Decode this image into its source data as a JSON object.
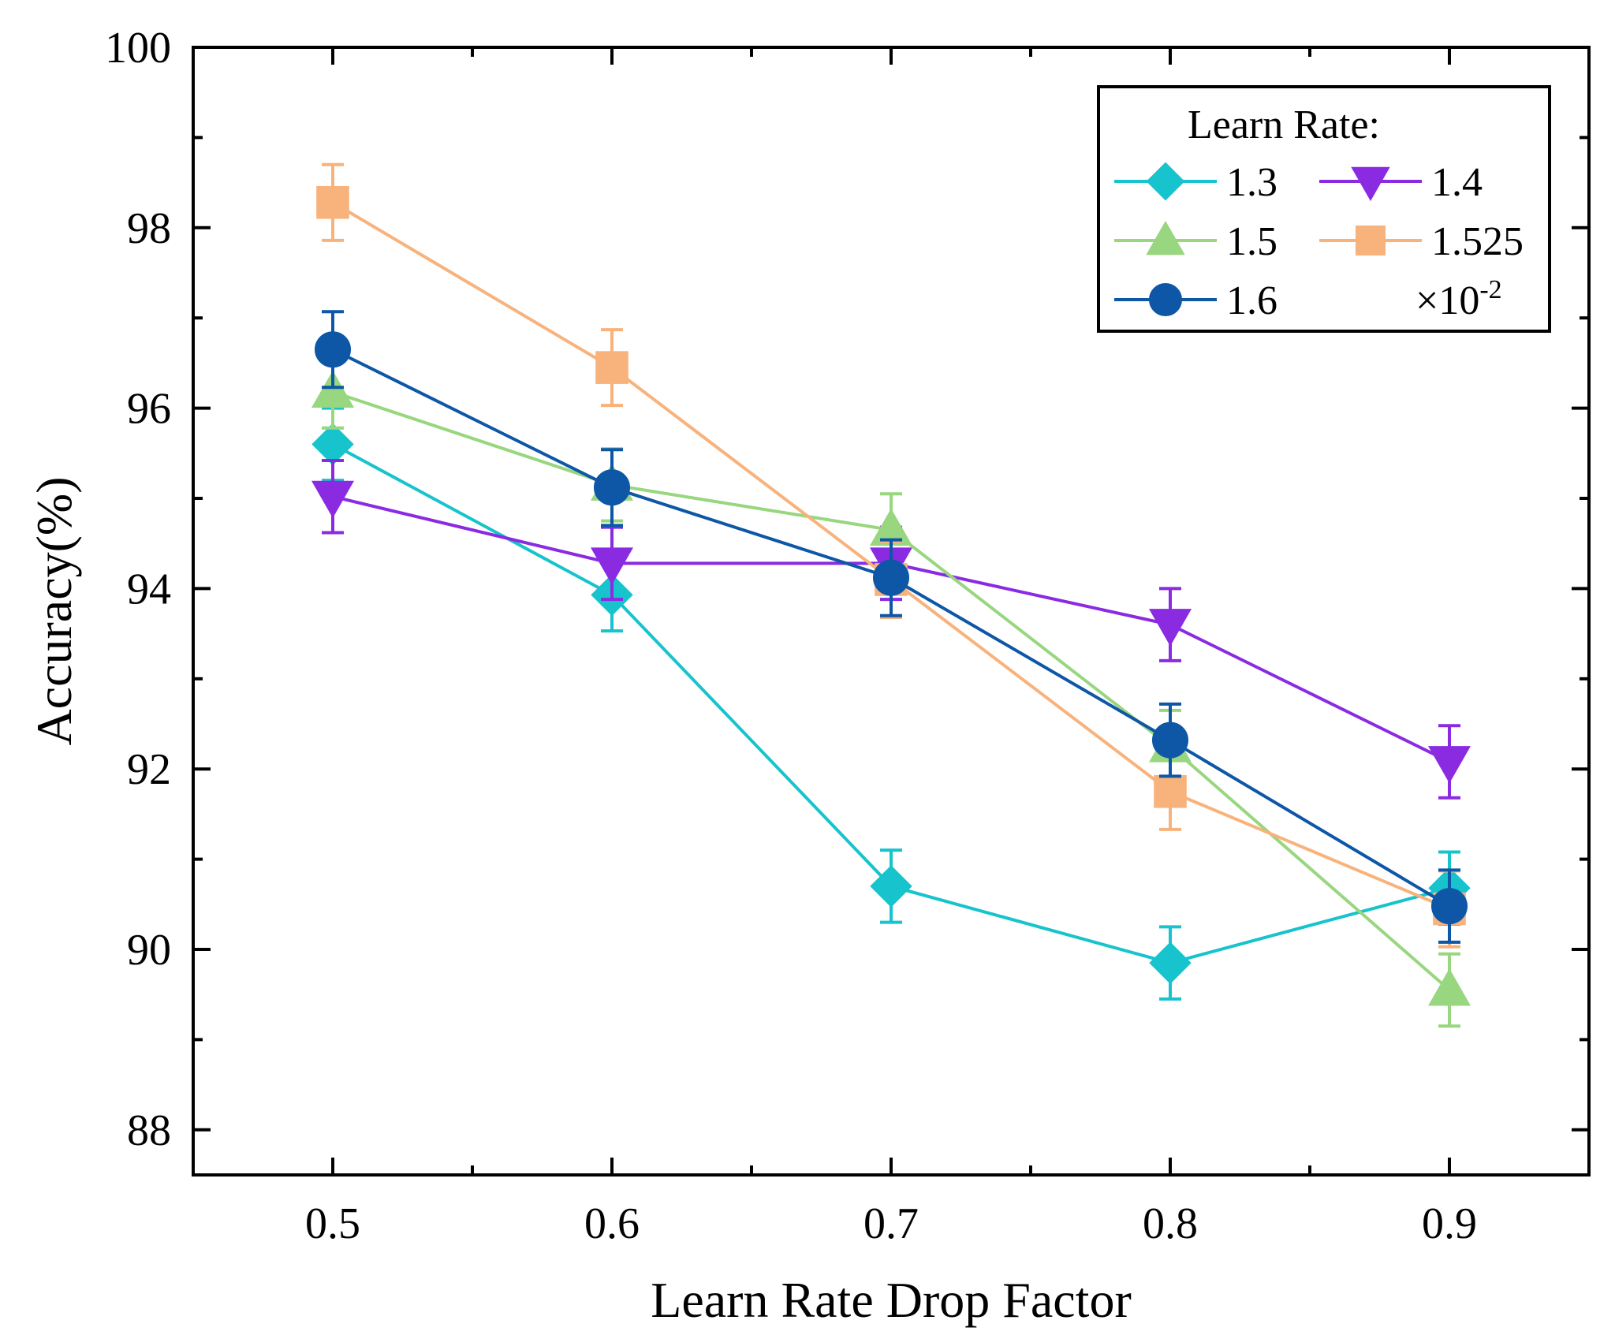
{
  "chart_data": {
    "type": "line",
    "title": "",
    "xlabel": "Learn Rate Drop Factor",
    "ylabel": "Accuracy(%)",
    "x": [
      0.5,
      0.6,
      0.7,
      0.8,
      0.9
    ],
    "x_tick_labels": [
      "0.5",
      "0.6",
      "0.7",
      "0.8",
      "0.9"
    ],
    "xlim": [
      0.45,
      0.95
    ],
    "ylim": [
      87.5,
      100
    ],
    "y_ticks": [
      88,
      90,
      92,
      94,
      96,
      98,
      100
    ],
    "y_tick_labels": [
      "88",
      "90",
      "92",
      "94",
      "96",
      "98",
      "100"
    ],
    "grid": false,
    "legend": {
      "title": "Learn Rate:",
      "position": "top-right",
      "multiplier_prefix": "×10",
      "multiplier_exp": "-2"
    },
    "series": [
      {
        "name": "1.3",
        "color": "#17c3cc",
        "marker": "diamond",
        "values": [
          95.6,
          93.93,
          90.7,
          89.85,
          90.68
        ],
        "errors": [
          0.4,
          0.4,
          0.4,
          0.4,
          0.4
        ]
      },
      {
        "name": "1.4",
        "color": "#8a2be2",
        "marker": "triangle-down",
        "values": [
          95.02,
          94.28,
          94.28,
          93.6,
          92.08
        ],
        "errors": [
          0.4,
          0.4,
          0.4,
          0.4,
          0.4
        ]
      },
      {
        "name": "1.5",
        "color": "#98d67f",
        "marker": "triangle-up",
        "values": [
          96.18,
          95.15,
          94.65,
          92.25,
          89.55
        ],
        "errors": [
          0.4,
          0.4,
          0.4,
          0.4,
          0.4
        ]
      },
      {
        "name": "1.525",
        "color": "#f8b27c",
        "marker": "square",
        "values": [
          98.28,
          96.45,
          94.1,
          91.75,
          90.45
        ],
        "errors": [
          0.42,
          0.42,
          0.42,
          0.42,
          0.42
        ]
      },
      {
        "name": "1.6",
        "color": "#0d57a6",
        "marker": "circle",
        "values": [
          96.65,
          95.12,
          94.12,
          92.32,
          90.48
        ],
        "errors": [
          0.42,
          0.42,
          0.42,
          0.4,
          0.4
        ]
      }
    ]
  }
}
